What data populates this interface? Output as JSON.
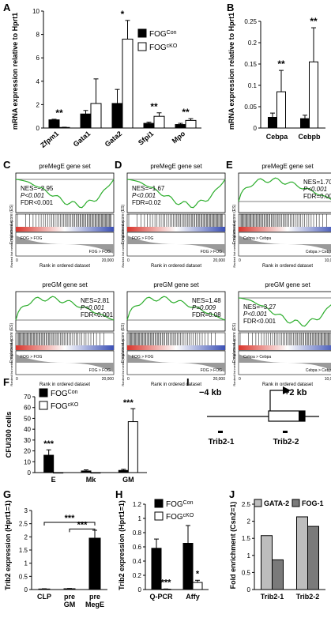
{
  "panels": {
    "A": {
      "label": "A",
      "ylabel": "mRNA expression relative to Hprt1",
      "ylim": [
        0,
        10
      ],
      "yticks": [
        "0",
        "2",
        "4",
        "6",
        "8",
        "10"
      ],
      "legend": [
        "FOG",
        "FOG"
      ],
      "legend_sup": [
        "Con",
        "cKO"
      ],
      "categories": [
        "Zfpm1",
        "Gata1",
        "Gata2",
        "Sfpi1",
        "Mpo"
      ],
      "sig": [
        "**",
        "",
        "*",
        "**",
        "**"
      ],
      "series": [
        {
          "name": "FOGCon",
          "values": [
            0.7,
            1.2,
            2.1,
            0.4,
            0.3
          ],
          "err": [
            0.05,
            0.3,
            1.2,
            0.1,
            0.1
          ]
        },
        {
          "name": "FOGcKO",
          "values": [
            0.05,
            2.1,
            7.6,
            1.0,
            0.65
          ],
          "err": [
            0.02,
            2.1,
            1.6,
            0.3,
            0.15
          ]
        }
      ]
    },
    "B": {
      "label": "B",
      "ylabel": "mRNA expression relative to Hprt1",
      "ylim": [
        0,
        0.25
      ],
      "yticks": [
        "0",
        "0.05",
        "0.1",
        "0.15",
        "0.2",
        "0.25"
      ],
      "categories": [
        "Cebpa",
        "Cebpb"
      ],
      "sig": [
        "**",
        "**"
      ],
      "series": [
        {
          "name": "FOGCon",
          "values": [
            0.025,
            0.022
          ],
          "err": [
            0.01,
            0.008
          ]
        },
        {
          "name": "FOGcKO",
          "values": [
            0.085,
            0.155
          ],
          "err": [
            0.05,
            0.08
          ]
        }
      ]
    },
    "gsea": [
      {
        "label": "C",
        "title": "preMegE gene set",
        "stats": [
          "NES=−2.95",
          "P<0.001",
          "FDR<0.001"
        ],
        "left": "FOG",
        "right": "FOG",
        "xmax": "20,000"
      },
      {
        "label": "D",
        "title": "preMegE gene set",
        "stats": [
          "NES=−1.67",
          "P<0.001",
          "FDR=0.02"
        ],
        "left": "FOG",
        "right": "FOG",
        "xmax": "20,000"
      },
      {
        "label": "E",
        "title": "preMegE gene set",
        "stats": [
          "NES=1.70",
          "P<0.001",
          "FDR=0.006"
        ],
        "left": "Cebpa",
        "right": "Cebpa",
        "xmax": "10,000"
      },
      {
        "label": "",
        "title": "preGM gene set",
        "stats": [
          "NES=2.81",
          "P<0.001",
          "FDR<0.001"
        ],
        "left": "FOG",
        "right": "FOG",
        "xmax": "20,000"
      },
      {
        "label": "",
        "title": "preGM gene set",
        "stats": [
          "NES=1.48",
          "P=0.009",
          "FDR=0.08"
        ],
        "left": "FOG",
        "right": "FOG",
        "xmax": "20,000"
      },
      {
        "label": "",
        "title": "preGM gene set",
        "stats": [
          "NES=−3.27",
          "P<0.001",
          "FDR<0.001"
        ],
        "left": "Cebpa",
        "right": "Cebpa",
        "xmax": "10,000"
      }
    ],
    "gsea_axis": {
      "ylabel": "Enrichment score (ES)",
      "ylabel2": "Ranked list metric (Signal2Noise)",
      "xlabel": "Rank in ordered dataset"
    },
    "F": {
      "label": "F",
      "ylabel": "CFU/300 cells",
      "ylim": [
        0,
        70
      ],
      "yticks": [
        "0",
        "10",
        "20",
        "30",
        "40",
        "50",
        "60",
        "70"
      ],
      "categories": [
        "E",
        "Mk",
        "GM"
      ],
      "sig": [
        "***",
        "",
        "***"
      ],
      "series": [
        {
          "name": "FOGCon",
          "values": [
            16,
            1.5,
            2
          ],
          "err": [
            5,
            1,
            1
          ]
        },
        {
          "name": "FOGcKO",
          "values": [
            0,
            0,
            47
          ],
          "err": [
            0,
            0,
            12
          ]
        }
      ]
    },
    "G": {
      "label": "G",
      "ylabel": "Trib2 expression (Hprt1=1)",
      "ylim": [
        0,
        3
      ],
      "yticks": [
        "0",
        "0.5",
        "1",
        "1.5",
        "2",
        "2.5",
        "3"
      ],
      "categories": [
        "CLP",
        "pre GM",
        "pre MegE"
      ],
      "cat_lines": [
        [
          "CLP"
        ],
        [
          "pre",
          "GM"
        ],
        [
          "pre",
          "MegE"
        ]
      ],
      "values": [
        0.02,
        0.03,
        1.95
      ],
      "err": [
        0.01,
        0.01,
        0.3
      ],
      "sig": [
        "***",
        "***"
      ]
    },
    "H": {
      "label": "H",
      "ylabel": "Trib2 expression (Hprt1=1)",
      "ylim": [
        0,
        1.2
      ],
      "yticks": [
        "0",
        "0.2",
        "0.4",
        "0.6",
        "0.8",
        "1",
        "1.2"
      ],
      "categories": [
        "Q-PCR",
        "Affy"
      ],
      "sig": [
        "***",
        "*"
      ],
      "series": [
        {
          "name": "FOGCon",
          "values": [
            0.58,
            0.65
          ],
          "err": [
            0.13,
            0.25
          ]
        },
        {
          "name": "FOGcKO",
          "values": [
            0.005,
            0.1
          ],
          "err": [
            0.003,
            0.03
          ]
        }
      ]
    },
    "I": {
      "label": "I",
      "left": "−4 kb",
      "right": "+2 kb",
      "sites": [
        "Trib2-1",
        "Trib2-2"
      ]
    },
    "J": {
      "label": "J",
      "ylabel": "Fold enrichment (Csn2=1)",
      "ylim": [
        0,
        2.5
      ],
      "yticks": [
        "0",
        "0.5",
        "1",
        "1.5",
        "2",
        "2.5"
      ],
      "legend": [
        "GATA-2",
        "FOG-1"
      ],
      "categories": [
        "Trib2-1",
        "Trib2-2"
      ],
      "series": [
        {
          "name": "GATA-2",
          "values": [
            1.58,
            2.13
          ]
        },
        {
          "name": "FOG-1",
          "values": [
            0.87,
            1.85
          ]
        }
      ]
    }
  },
  "colors": {
    "con": "#000000",
    "cko": "#ffffff",
    "gata2": "#bdbdbd",
    "fog1": "#7a7a7a",
    "es": "#2cad2c"
  },
  "chart_data": [
    {
      "type": "bar",
      "panel": "A",
      "categories": [
        "Zfpm1",
        "Gata1",
        "Gata2",
        "Sfpi1",
        "Mpo"
      ],
      "ylabel": "mRNA expression relative to Hprt1",
      "ylim": [
        0,
        10
      ],
      "series": [
        {
          "name": "FOGCon",
          "values": [
            0.7,
            1.2,
            2.1,
            0.4,
            0.3
          ]
        },
        {
          "name": "FOGcKO",
          "values": [
            0.05,
            2.1,
            7.6,
            1.0,
            0.65
          ]
        }
      ]
    },
    {
      "type": "bar",
      "panel": "B",
      "categories": [
        "Cebpa",
        "Cebpb"
      ],
      "ylabel": "mRNA expression relative to Hprt1",
      "ylim": [
        0,
        0.25
      ],
      "series": [
        {
          "name": "FOGCon",
          "values": [
            0.025,
            0.022
          ]
        },
        {
          "name": "FOGcKO",
          "values": [
            0.085,
            0.155
          ]
        }
      ]
    },
    {
      "type": "bar",
      "panel": "F",
      "categories": [
        "E",
        "Mk",
        "GM"
      ],
      "ylabel": "CFU/300 cells",
      "ylim": [
        0,
        70
      ],
      "series": [
        {
          "name": "FOGCon",
          "values": [
            16,
            1.5,
            2
          ]
        },
        {
          "name": "FOGcKO",
          "values": [
            0,
            0,
            47
          ]
        }
      ]
    },
    {
      "type": "bar",
      "panel": "G",
      "categories": [
        "CLP",
        "pre GM",
        "pre MegE"
      ],
      "ylabel": "Trib2 expression (Hprt1=1)",
      "ylim": [
        0,
        3
      ],
      "values": [
        0.02,
        0.03,
        1.95
      ]
    },
    {
      "type": "bar",
      "panel": "H",
      "categories": [
        "Q-PCR",
        "Affy"
      ],
      "ylabel": "Trib2 expression (Hprt1=1)",
      "ylim": [
        0,
        1.2
      ],
      "series": [
        {
          "name": "FOGCon",
          "values": [
            0.58,
            0.65
          ]
        },
        {
          "name": "FOGcKO",
          "values": [
            0.005,
            0.1
          ]
        }
      ]
    },
    {
      "type": "bar",
      "panel": "J",
      "categories": [
        "Trib2-1",
        "Trib2-2"
      ],
      "ylabel": "Fold enrichment (Csn2=1)",
      "ylim": [
        0,
        2.5
      ],
      "series": [
        {
          "name": "GATA-2",
          "values": [
            1.58,
            2.13
          ]
        },
        {
          "name": "FOG-1",
          "values": [
            0.87,
            1.85
          ]
        }
      ]
    }
  ]
}
